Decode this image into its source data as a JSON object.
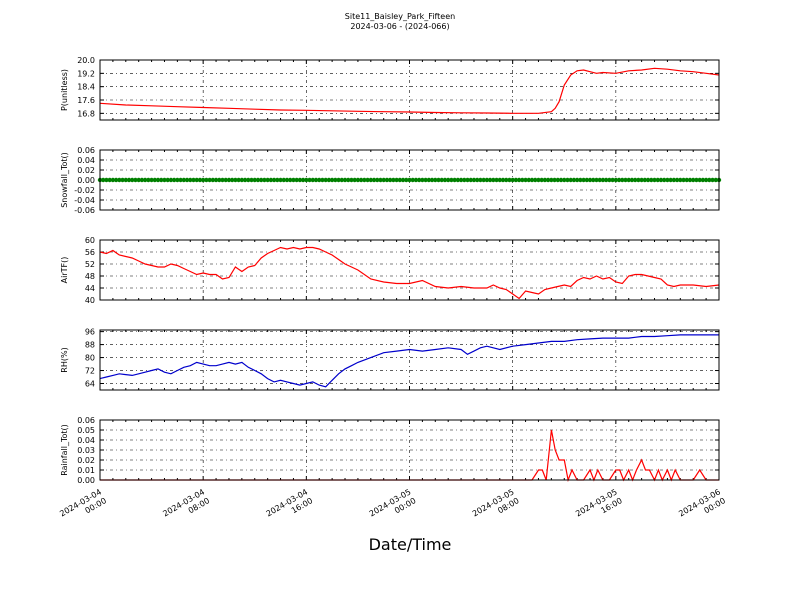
{
  "figure": {
    "title_line1": "Site11_Baisley_Park_Fifteen",
    "title_line2": "2024-03-06 - (2024-066)",
    "xlabel": "Date/Time"
  },
  "chart_data": [
    {
      "type": "line",
      "ylabel": "P(unitless)",
      "ylim": [
        16.4,
        20.0
      ],
      "yticks": [
        "16.8",
        "17.6",
        "18.4",
        "19.2",
        "20.0"
      ],
      "grid": true,
      "series": [
        {
          "color": "#ff0000",
          "x": [
            0,
            2,
            4,
            6,
            8,
            10,
            12,
            14,
            16,
            18,
            20,
            22,
            24,
            26,
            28,
            30,
            32,
            34,
            35,
            35.3,
            35.6,
            36,
            36.5,
            37,
            37.5,
            38,
            38.5,
            39,
            40,
            41,
            42,
            43,
            44,
            45,
            46,
            47,
            48
          ],
          "y": [
            17.4,
            17.3,
            17.25,
            17.2,
            17.15,
            17.1,
            17.05,
            17.0,
            16.98,
            16.95,
            16.92,
            16.9,
            16.88,
            16.85,
            16.83,
            16.82,
            16.8,
            16.8,
            16.9,
            17.1,
            17.5,
            18.5,
            19.1,
            19.35,
            19.4,
            19.3,
            19.2,
            19.25,
            19.2,
            19.35,
            19.4,
            19.5,
            19.45,
            19.35,
            19.3,
            19.2,
            19.1
          ]
        }
      ]
    },
    {
      "type": "scatter",
      "ylabel": "Snowfall_Tot()",
      "ylim": [
        -0.06,
        0.06
      ],
      "yticks": [
        "-0.06",
        "-0.04",
        "-0.02",
        "0.00",
        "0.02",
        "0.04",
        "0.06"
      ],
      "grid": true,
      "series": [
        {
          "color": "#008000",
          "constant": 0.0
        }
      ]
    },
    {
      "type": "line",
      "ylabel": "AirTF()",
      "ylim": [
        40,
        60
      ],
      "yticks": [
        "40",
        "44",
        "48",
        "52",
        "56",
        "60"
      ],
      "grid": true,
      "series": [
        {
          "color": "#ff0000",
          "x": [
            0,
            0.5,
            1,
            1.5,
            2,
            2.5,
            3,
            3.5,
            4,
            4.5,
            5,
            5.5,
            6,
            6.5,
            7,
            7.5,
            8,
            8.5,
            9,
            9.5,
            10,
            10.5,
            11,
            11.5,
            12,
            12.5,
            13,
            13.5,
            14,
            14.5,
            15,
            15.5,
            16,
            16.5,
            17,
            17.5,
            18,
            18.5,
            19,
            19.5,
            20,
            21,
            22,
            23,
            24,
            25,
            26,
            27,
            28,
            29,
            30,
            30.5,
            31,
            31.5,
            32,
            32.5,
            33,
            33.5,
            34,
            34.5,
            35,
            35.5,
            36,
            36.5,
            37,
            37.5,
            38,
            38.5,
            39,
            39.5,
            40,
            40.5,
            41,
            41.5,
            42,
            42.5,
            43,
            43.5,
            44,
            44.5,
            45,
            46,
            47,
            48
          ],
          "y": [
            56,
            55.5,
            56.5,
            55,
            54.5,
            54,
            53,
            52,
            51.5,
            51,
            51,
            52,
            51.5,
            50.5,
            49.5,
            48.5,
            49,
            48.5,
            48.5,
            47,
            47.5,
            51,
            49.5,
            51,
            51.5,
            54,
            55.5,
            56.5,
            57.5,
            57,
            57.5,
            57,
            57.5,
            57.5,
            57,
            56,
            55,
            53.5,
            52,
            51,
            50,
            47,
            46,
            45.5,
            45.5,
            46.5,
            44.5,
            44,
            44.5,
            44,
            44,
            45,
            44,
            43.5,
            42,
            40.5,
            43,
            42.5,
            42,
            43.5,
            44,
            44.5,
            45,
            44.5,
            46.5,
            47.5,
            47,
            48,
            47,
            47.5,
            46,
            45.5,
            48,
            48.5,
            48.5,
            48,
            47.5,
            47,
            45,
            44.5,
            45,
            45,
            44.5,
            45
          ]
        }
      ]
    },
    {
      "type": "line",
      "ylabel": "RH(%)",
      "ylim": [
        60,
        97
      ],
      "yticks": [
        "64",
        "72",
        "80",
        "88",
        "96"
      ],
      "grid": true,
      "series": [
        {
          "color": "#0000cc",
          "x": [
            0,
            0.5,
            1,
            1.5,
            2,
            2.5,
            3,
            3.5,
            4,
            4.5,
            5,
            5.5,
            6,
            6.5,
            7,
            7.5,
            8,
            8.5,
            9,
            9.5,
            10,
            10.5,
            11,
            11.5,
            12,
            12.5,
            13,
            13.5,
            14,
            14.5,
            15,
            15.5,
            16,
            16.5,
            17,
            17.5,
            18,
            18.5,
            19,
            19.5,
            20,
            21,
            22,
            23,
            24,
            25,
            26,
            27,
            28,
            28.5,
            29,
            29.5,
            30,
            31,
            32,
            33,
            34,
            35,
            36,
            37,
            38,
            39,
            40,
            41,
            42,
            43,
            44,
            45,
            46,
            47,
            48
          ],
          "y": [
            67,
            68,
            69,
            70,
            69.5,
            69,
            70,
            71,
            72,
            73,
            71,
            70,
            72,
            74,
            75,
            77,
            76,
            75,
            75,
            76,
            77,
            76,
            77,
            74,
            72,
            70,
            67,
            65,
            66,
            65,
            64,
            63,
            64,
            65,
            63,
            62,
            66,
            70,
            73,
            75,
            77,
            80,
            83,
            84,
            85,
            84,
            85,
            86,
            85,
            82,
            84,
            86,
            87,
            85,
            87,
            88,
            89,
            90,
            90,
            91,
            91.5,
            92,
            92,
            92,
            93,
            93,
            93.5,
            94,
            94,
            94,
            94
          ]
        }
      ]
    },
    {
      "type": "line",
      "ylabel": "Rainfall_Tot()",
      "ylim": [
        0,
        0.06
      ],
      "yticks": [
        "0.00",
        "0.01",
        "0.02",
        "0.03",
        "0.04",
        "0.05",
        "0.06"
      ],
      "grid": true,
      "series": [
        {
          "color": "#ff0000",
          "x": [
            0,
            33,
            33.5,
            34,
            34.3,
            34.6,
            35,
            35.3,
            35.6,
            36,
            36.3,
            36.6,
            37,
            37.5,
            38,
            38.3,
            38.6,
            39,
            39.5,
            40,
            40.3,
            40.6,
            41,
            41.3,
            41.6,
            42,
            42.3,
            42.6,
            43,
            43.3,
            43.6,
            44,
            44.3,
            44.6,
            45,
            45.5,
            46,
            46.5,
            47,
            48
          ],
          "y": [
            0,
            0,
            0,
            0.01,
            0.01,
            0,
            0.05,
            0.03,
            0.02,
            0.02,
            0,
            0.01,
            0,
            0,
            0.01,
            0,
            0.01,
            0,
            0,
            0.01,
            0.01,
            0,
            0.01,
            0,
            0.01,
            0.02,
            0.01,
            0.01,
            0,
            0.01,
            0,
            0.01,
            0,
            0.01,
            0,
            0,
            0,
            0.01,
            0,
            0
          ]
        }
      ]
    }
  ],
  "xticks": [
    {
      "pos": 0,
      "line1": "2024-03-04",
      "line2": "00:00"
    },
    {
      "pos": 8,
      "line1": "2024-03-04",
      "line2": "08:00"
    },
    {
      "pos": 16,
      "line1": "2024-03-04",
      "line2": "16:00"
    },
    {
      "pos": 24,
      "line1": "2024-03-05",
      "line2": "00:00"
    },
    {
      "pos": 32,
      "line1": "2024-03-05",
      "line2": "08:00"
    },
    {
      "pos": 40,
      "line1": "2024-03-05",
      "line2": "16:00"
    },
    {
      "pos": 48,
      "line1": "2024-03-06",
      "line2": "00:00"
    }
  ]
}
